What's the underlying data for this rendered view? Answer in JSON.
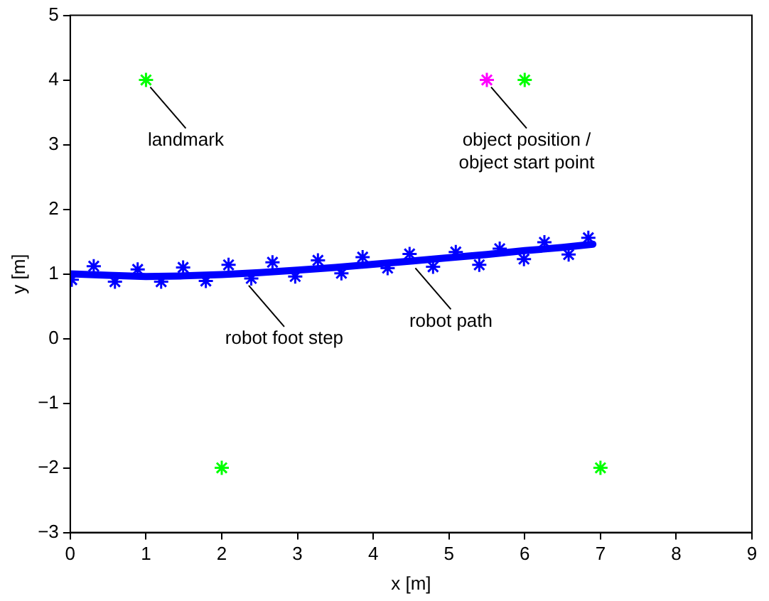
{
  "chart_data": {
    "type": "scatter",
    "xlabel": "x [m]",
    "ylabel": "y [m]",
    "xlim": [
      0,
      9
    ],
    "ylim": [
      -3,
      5
    ],
    "xticks": [
      0,
      1,
      2,
      3,
      4,
      5,
      6,
      7,
      8,
      9
    ],
    "yticks": [
      {
        "value": -3,
        "label": "−3"
      },
      {
        "value": -2,
        "label": "−2"
      },
      {
        "value": -1,
        "label": "−1"
      },
      0,
      1,
      2,
      3,
      4,
      5
    ],
    "grid": false,
    "legend": false,
    "series": [
      {
        "type": "line",
        "color": "#0000ff",
        "marker": "none",
        "x": [
          0,
          0.5,
          1,
          1.5,
          2,
          2.5,
          3,
          3.5,
          4,
          4.5,
          5,
          5.5,
          6,
          6.5,
          6.9
        ],
        "values": [
          1.0,
          0.98,
          0.96,
          0.97,
          0.99,
          1.02,
          1.06,
          1.1,
          1.15,
          1.2,
          1.25,
          1.3,
          1.36,
          1.41,
          1.46
        ]
      },
      {
        "color": "#0000ff",
        "marker": "cross",
        "x": [
          0.02,
          0.31,
          0.59,
          0.89,
          1.2,
          1.49,
          1.79,
          2.09,
          2.39,
          2.67,
          2.97,
          3.27,
          3.58,
          3.86,
          4.19,
          4.48,
          4.79,
          5.09,
          5.4,
          5.67,
          5.99,
          6.26,
          6.58,
          6.84
        ],
        "values": [
          0.91,
          1.12,
          0.88,
          1.07,
          0.88,
          1.1,
          0.89,
          1.14,
          0.93,
          1.18,
          0.96,
          1.21,
          1.01,
          1.26,
          1.09,
          1.31,
          1.11,
          1.34,
          1.14,
          1.39,
          1.23,
          1.49,
          1.3,
          1.56
        ]
      },
      {
        "color": "#00ff00",
        "marker": "cross",
        "x": [
          1,
          6,
          2,
          7
        ],
        "values": [
          4,
          4,
          -2,
          -2
        ]
      },
      {
        "color": "#ff00ff",
        "marker": "cross",
        "x": [
          5.5
        ],
        "values": [
          4
        ]
      }
    ],
    "annotations": [
      {
        "text": "landmark",
        "x": 1,
        "y": 4
      },
      {
        "text": "object position /\nobject start point",
        "x": 5.5,
        "y": 4
      },
      {
        "text": "robot foot step",
        "x": 2.3,
        "y": 0.93
      },
      {
        "text": "robot path",
        "x": 4.5,
        "y": 1.2
      }
    ]
  }
}
